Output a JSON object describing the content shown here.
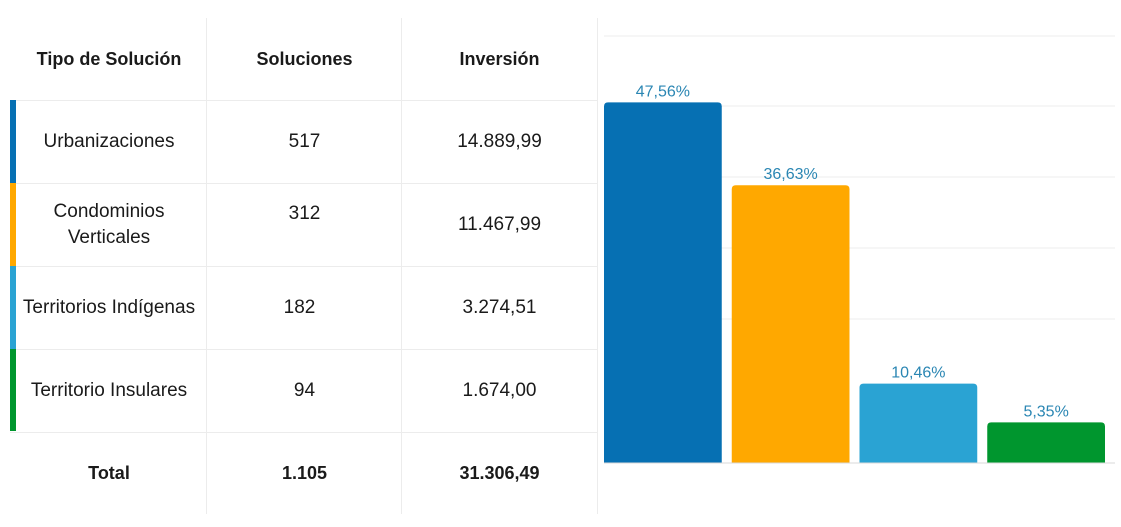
{
  "table": {
    "headers": {
      "tipo": "Tipo de Solución",
      "soluciones": "Soluciones",
      "inversion": "Inversión"
    },
    "rows": [
      {
        "tipo": "Urbanizaciones",
        "soluciones": "517",
        "inversion": "14.889,99",
        "color": "#0670b3"
      },
      {
        "tipo": "Condominios Verticales",
        "soluciones": "312",
        "inversion": "11.467,99",
        "color": "#ffa800"
      },
      {
        "tipo": "Territorios Indígenas",
        "soluciones": "182",
        "inversion": "3.274,51",
        "color": "#2aa3d3"
      },
      {
        "tipo": "Territorio Insulares",
        "soluciones": "94",
        "inversion": "1.674,00",
        "color": "#00962e"
      }
    ],
    "total": {
      "tipo": "Total",
      "soluciones": "1.105",
      "inversion": "31.306,49"
    }
  },
  "chart_data": {
    "type": "bar",
    "categories": [
      "Urbanizaciones",
      "Condominios Verticales",
      "Territorios Indígenas",
      "Territorio Insulares"
    ],
    "values": [
      47.56,
      36.63,
      10.46,
      5.35
    ],
    "labels": [
      "47,56%",
      "36,63%",
      "10,46%",
      "5,35%"
    ],
    "colors": [
      "#0670b3",
      "#ffa800",
      "#2aa3d3",
      "#00962e"
    ],
    "ylim": [
      0,
      50
    ],
    "grid": true,
    "legend": "none"
  }
}
